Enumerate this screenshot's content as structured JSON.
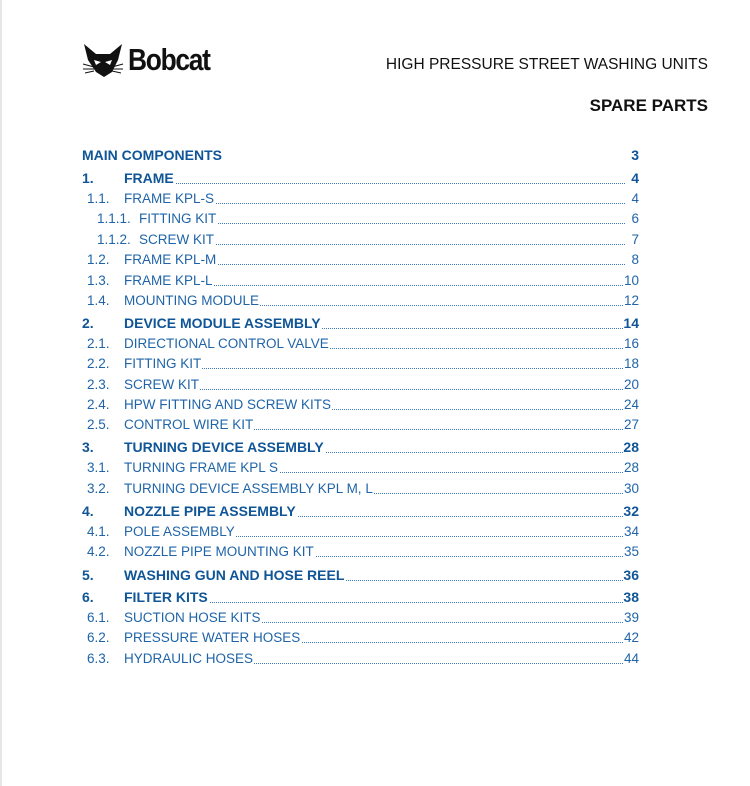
{
  "header": {
    "logo": "Bobcat",
    "title": "HIGH PRESSURE STREET WASHING UNITS",
    "subtitle": "SPARE PARTS"
  },
  "toc": [
    {
      "num": "",
      "title": "MAIN COMPONENTS",
      "page": "3",
      "level": 0
    },
    {
      "num": "1.",
      "title": "FRAME",
      "page": "4",
      "level": 1
    },
    {
      "num": "1.1.",
      "title": "FRAME KPL-S",
      "page": "4",
      "level": 2
    },
    {
      "num": "1.1.1.",
      "title": "FITTING KIT",
      "page": "6",
      "level": 3
    },
    {
      "num": "1.1.2.",
      "title": "SCREW KIT",
      "page": "7",
      "level": 3
    },
    {
      "num": "1.2.",
      "title": "FRAME KPL-M",
      "page": "8",
      "level": 2
    },
    {
      "num": "1.3.",
      "title": "FRAME KPL-L",
      "page": "10",
      "level": 2
    },
    {
      "num": "1.4.",
      "title": "MOUNTING MODULE",
      "page": "12",
      "level": 2
    },
    {
      "num": "2.",
      "title": "DEVICE MODULE ASSEMBLY",
      "page": "14",
      "level": 1
    },
    {
      "num": "2.1.",
      "title": "DIRECTIONAL CONTROL VALVE",
      "page": "16",
      "level": 2
    },
    {
      "num": "2.2.",
      "title": "FITTING KIT",
      "page": "18",
      "level": 2
    },
    {
      "num": "2.3.",
      "title": "SCREW KIT",
      "page": "20",
      "level": 2
    },
    {
      "num": "2.4.",
      "title": "HPW FITTING AND SCREW KITS",
      "page": "24",
      "level": 2
    },
    {
      "num": "2.5.",
      "title": "CONTROL WIRE KIT",
      "page": "27",
      "level": 2
    },
    {
      "num": "3.",
      "title": "TURNING DEVICE ASSEMBLY",
      "page": "28",
      "level": 1
    },
    {
      "num": "3.1.",
      "title": "TURNING FRAME KPL S",
      "page": "28",
      "level": 2
    },
    {
      "num": "3.2.",
      "title": "TURNING DEVICE ASSEMBLY KPL M, L",
      "page": "30",
      "level": 2
    },
    {
      "num": "4.",
      "title": "NOZZLE PIPE ASSEMBLY",
      "page": "32",
      "level": 1
    },
    {
      "num": "4.1.",
      "title": "POLE ASSEMBLY",
      "page": "34",
      "level": 2
    },
    {
      "num": "4.2.",
      "title": "NOZZLE PIPE MOUNTING KIT",
      "page": "35",
      "level": 2
    },
    {
      "num": "5.",
      "title": "WASHING GUN AND HOSE REEL",
      "page": "36",
      "level": 1
    },
    {
      "num": "6.",
      "title": "FILTER KITS",
      "page": "38",
      "level": 1
    },
    {
      "num": "6.1.",
      "title": "SUCTION HOSE KITS",
      "page": "39",
      "level": 2
    },
    {
      "num": "6.2.",
      "title": "PRESSURE WATER HOSES",
      "page": "42",
      "level": 2
    },
    {
      "num": "6.3.",
      "title": "HYDRAULIC HOSES",
      "page": "44",
      "level": 2
    }
  ]
}
